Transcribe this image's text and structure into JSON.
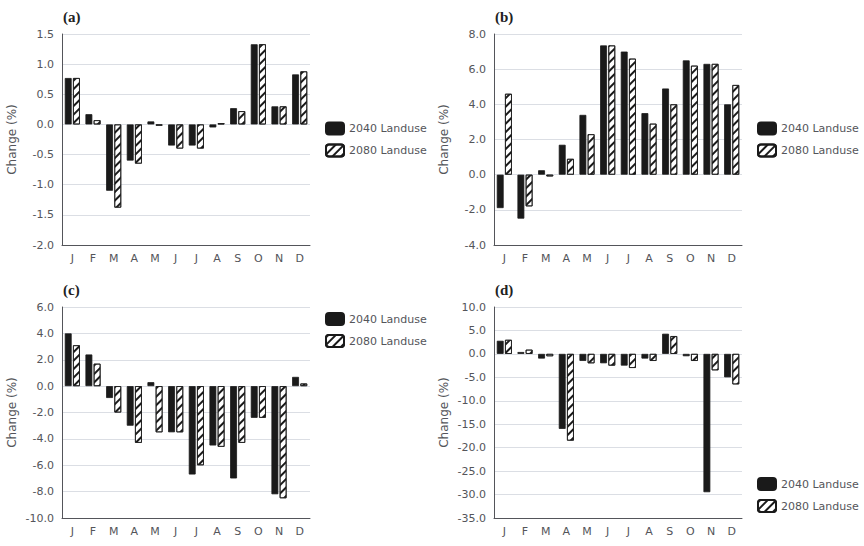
{
  "chart_data": [
    {
      "type": "bar",
      "annotation": "(a)",
      "ylabel": "Change (%)",
      "categories": [
        "J",
        "F",
        "M",
        "A",
        "M",
        "J",
        "J",
        "A",
        "S",
        "O",
        "N",
        "D"
      ],
      "series": [
        {
          "name": "2040 Landuse",
          "color": "#1a1a1a",
          "values": [
            0.77,
            0.17,
            -1.1,
            -0.6,
            0.05,
            -0.35,
            -0.35,
            -0.05,
            0.27,
            1.33,
            0.3,
            0.83
          ]
        },
        {
          "name": "2080 Landuse",
          "color": "#ffffff",
          "values": [
            0.77,
            0.07,
            -1.38,
            -0.65,
            -0.02,
            -0.4,
            -0.4,
            0.02,
            0.22,
            1.33,
            0.3,
            0.88
          ]
        }
      ],
      "ylim": [
        -2.0,
        1.5
      ],
      "yticks": [
        {
          "value": -2.0,
          "label": "-2.0"
        },
        -1.5,
        {
          "value": -1.0,
          "label": "-1.0"
        },
        -0.5,
        {
          "value": 0.0,
          "label": "0.0"
        },
        0.5,
        {
          "value": 1.0,
          "label": "1.0"
        },
        1.5
      ],
      "grid": true,
      "legend": "center right"
    },
    {
      "type": "bar",
      "annotation": "(b)",
      "ylabel": "Change (%)",
      "categories": [
        "J",
        "F",
        "M",
        "A",
        "M",
        "J",
        "J",
        "A",
        "S",
        "O",
        "N",
        "D"
      ],
      "series": [
        {
          "name": "2040 Landuse",
          "color": "#1a1a1a",
          "values": [
            -1.9,
            -2.5,
            0.25,
            1.7,
            3.4,
            7.35,
            7.0,
            3.5,
            4.9,
            6.5,
            6.3,
            4.0
          ]
        },
        {
          "name": "2080 Landuse",
          "color": "#ffffff",
          "values": [
            4.6,
            -1.8,
            -0.1,
            0.9,
            2.3,
            7.35,
            6.6,
            2.9,
            4.0,
            6.2,
            6.3,
            5.1
          ]
        }
      ],
      "ylim": [
        -4.0,
        8.0
      ],
      "yticks": [
        {
          "value": -4.0,
          "label": "-4.0"
        },
        {
          "value": -2.0,
          "label": "-2.0"
        },
        {
          "value": 0.0,
          "label": "0.0"
        },
        {
          "value": 2.0,
          "label": "2.0"
        },
        {
          "value": 4.0,
          "label": "4.0"
        },
        {
          "value": 6.0,
          "label": "6.0"
        },
        {
          "value": 8.0,
          "label": "8.0"
        }
      ],
      "grid": true,
      "legend": "center right"
    },
    {
      "type": "bar",
      "annotation": "(c)",
      "ylabel": "Change (%)",
      "categories": [
        "J",
        "F",
        "M",
        "A",
        "M",
        "J",
        "J",
        "A",
        "S",
        "O",
        "N",
        "D"
      ],
      "series": [
        {
          "name": "2040 Landuse",
          "color": "#1a1a1a",
          "values": [
            4.0,
            2.4,
            -0.9,
            -3.0,
            0.3,
            -3.5,
            -6.7,
            -4.5,
            -7.0,
            -2.4,
            -8.2,
            0.7
          ]
        },
        {
          "name": "2080 Landuse",
          "color": "#ffffff",
          "values": [
            3.1,
            1.7,
            -2.0,
            -4.3,
            -3.5,
            -3.5,
            -6.0,
            -4.6,
            -4.3,
            -2.4,
            -8.5,
            0.2
          ]
        }
      ],
      "ylim": [
        -10.0,
        6.0
      ],
      "yticks": [
        {
          "value": -10.0,
          "label": "-10.0"
        },
        {
          "value": -8.0,
          "label": "-8.0"
        },
        {
          "value": -6.0,
          "label": "-6.0"
        },
        {
          "value": -4.0,
          "label": "-4.0"
        },
        {
          "value": -2.0,
          "label": "-2.0"
        },
        {
          "value": 0.0,
          "label": "0.0"
        },
        {
          "value": 2.0,
          "label": "2.0"
        },
        {
          "value": 4.0,
          "label": "4.0"
        },
        {
          "value": 6.0,
          "label": "6.0"
        }
      ],
      "grid": true,
      "legend": "upper right"
    },
    {
      "type": "bar",
      "annotation": "(d)",
      "ylabel": "Change (%)",
      "categories": [
        "J",
        "F",
        "M",
        "A",
        "M",
        "J",
        "J",
        "A",
        "S",
        "O",
        "N",
        "D"
      ],
      "series": [
        {
          "name": "2040 Landuse",
          "color": "#1a1a1a",
          "values": [
            2.8,
            0.4,
            -1.0,
            -16.0,
            -1.5,
            -2.0,
            -2.5,
            -1.0,
            4.3,
            -0.5,
            -29.5,
            -5.0
          ]
        },
        {
          "name": "2080 Landuse",
          "color": "#ffffff",
          "values": [
            3.0,
            0.9,
            -0.5,
            -18.5,
            -2.0,
            -2.5,
            -3.0,
            -1.5,
            3.8,
            -1.5,
            -3.5,
            -6.5
          ]
        }
      ],
      "ylim": [
        -35.0,
        10.0
      ],
      "yticks": [
        {
          "value": -35.0,
          "label": "-35.0"
        },
        {
          "value": -30.0,
          "label": "-30.0"
        },
        {
          "value": -25.0,
          "label": "-25.0"
        },
        {
          "value": -20.0,
          "label": "-20.0"
        },
        {
          "value": -15.0,
          "label": "-15.0"
        },
        {
          "value": -10.0,
          "label": "-10.0"
        },
        {
          "value": -5.0,
          "label": "-5.0"
        },
        {
          "value": 0.0,
          "label": "0.0"
        },
        {
          "value": 5.0,
          "label": "5.0"
        },
        {
          "value": 10.0,
          "label": "10.0"
        }
      ],
      "grid": true,
      "legend": "lower right"
    }
  ]
}
